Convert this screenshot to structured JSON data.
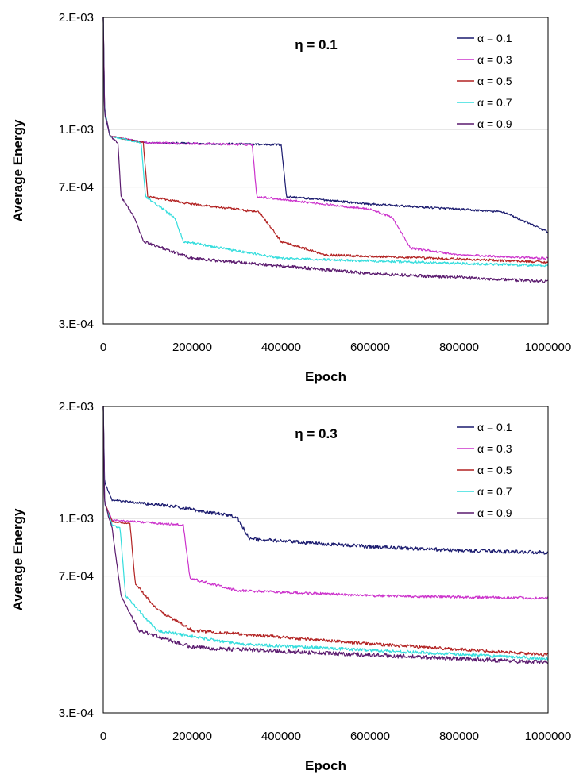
{
  "chart_data": [
    {
      "type": "line",
      "annotation": "η = 0.1",
      "xlabel": "Epoch",
      "ylabel": "Average Energy",
      "xlim": [
        0,
        1000000
      ],
      "ylim": [
        0.0003,
        0.002
      ],
      "x_ticks": [
        0,
        200000,
        400000,
        600000,
        800000,
        1000000
      ],
      "x_tick_labels": [
        "0",
        "200000",
        "400000",
        "600000",
        "800000",
        "1000000"
      ],
      "y_ticks": [
        0.0003,
        0.0007,
        0.001,
        0.002
      ],
      "y_tick_labels": [
        "3.E-04",
        "7.E-04",
        "1.E-03",
        "2.E-03"
      ],
      "y_scale": "log",
      "grid": "horizontal",
      "legend": "top-right",
      "series": [
        {
          "name": "α = 0.1",
          "color": "#1a1a6e",
          "noise": 0.008,
          "points": [
            [
              0,
              0.002
            ],
            [
              3000,
              0.0011
            ],
            [
              15000,
              0.00096
            ],
            [
              100000,
              0.00092
            ],
            [
              400000,
              0.00091
            ],
            [
              412000,
              0.00066
            ],
            [
              600000,
              0.00063
            ],
            [
              800000,
              0.00061
            ],
            [
              900000,
              0.0006
            ],
            [
              1000000,
              0.00053
            ]
          ]
        },
        {
          "name": "α = 0.3",
          "color": "#cc33cc",
          "noise": 0.008,
          "points": [
            [
              0,
              0.002
            ],
            [
              3000,
              0.00112
            ],
            [
              15000,
              0.00096
            ],
            [
              100000,
              0.00092
            ],
            [
              335000,
              0.00091
            ],
            [
              345000,
              0.00066
            ],
            [
              600000,
              0.00061
            ],
            [
              650000,
              0.00058
            ],
            [
              690000,
              0.00048
            ],
            [
              800000,
              0.00046
            ],
            [
              1000000,
              0.00045
            ]
          ]
        },
        {
          "name": "α = 0.5",
          "color": "#b22222",
          "noise": 0.009,
          "points": [
            [
              0,
              0.002
            ],
            [
              3000,
              0.00113
            ],
            [
              15000,
              0.00096
            ],
            [
              90000,
              0.00092
            ],
            [
              100000,
              0.00066
            ],
            [
              200000,
              0.00063
            ],
            [
              350000,
              0.0006
            ],
            [
              400000,
              0.0005
            ],
            [
              500000,
              0.00046
            ],
            [
              1000000,
              0.00044
            ]
          ]
        },
        {
          "name": "α = 0.7",
          "color": "#33dddd",
          "noise": 0.009,
          "points": [
            [
              0,
              0.002
            ],
            [
              3000,
              0.00113
            ],
            [
              15000,
              0.00096
            ],
            [
              85000,
              0.00092
            ],
            [
              95000,
              0.00066
            ],
            [
              160000,
              0.00058
            ],
            [
              180000,
              0.0005
            ],
            [
              400000,
              0.00045
            ],
            [
              1000000,
              0.00043
            ]
          ]
        },
        {
          "name": "α = 0.9",
          "color": "#5a1a6e",
          "noise": 0.012,
          "points": [
            [
              0,
              0.002
            ],
            [
              3000,
              0.00112
            ],
            [
              15000,
              0.00096
            ],
            [
              33000,
              0.00092
            ],
            [
              40000,
              0.00066
            ],
            [
              70000,
              0.00058
            ],
            [
              90000,
              0.0005
            ],
            [
              200000,
              0.00045
            ],
            [
              600000,
              0.00041
            ],
            [
              1000000,
              0.00039
            ]
          ]
        }
      ]
    },
    {
      "type": "line",
      "annotation": "η = 0.3",
      "xlabel": "Epoch",
      "ylabel": "Average Energy",
      "xlim": [
        0,
        1000000
      ],
      "ylim": [
        0.0003,
        0.002
      ],
      "x_ticks": [
        0,
        200000,
        400000,
        600000,
        800000,
        1000000
      ],
      "x_tick_labels": [
        "0",
        "200000",
        "400000",
        "600000",
        "800000",
        "1000000"
      ],
      "y_ticks": [
        0.0003,
        0.0007,
        0.001,
        0.002
      ],
      "y_tick_labels": [
        "3.E-04",
        "7.E-04",
        "1.E-03",
        "2.E-03"
      ],
      "y_scale": "log",
      "grid": "horizontal",
      "legend": "top-right",
      "series": [
        {
          "name": "α = 0.1",
          "color": "#1a1a6e",
          "noise": 0.014,
          "points": [
            [
              0,
              0.002
            ],
            [
              3000,
              0.00125
            ],
            [
              20000,
              0.00112
            ],
            [
              150000,
              0.00108
            ],
            [
              300000,
              0.00101
            ],
            [
              330000,
              0.00088
            ],
            [
              600000,
              0.00084
            ],
            [
              800000,
              0.00082
            ],
            [
              1000000,
              0.00081
            ]
          ]
        },
        {
          "name": "α = 0.3",
          "color": "#cc33cc",
          "noise": 0.01,
          "points": [
            [
              0,
              0.002
            ],
            [
              3000,
              0.0011
            ],
            [
              20000,
              0.00099
            ],
            [
              180000,
              0.00096
            ],
            [
              195000,
              0.00069
            ],
            [
              300000,
              0.00064
            ],
            [
              600000,
              0.00062
            ],
            [
              1000000,
              0.00061
            ]
          ]
        },
        {
          "name": "α = 0.5",
          "color": "#b22222",
          "noise": 0.012,
          "points": [
            [
              0,
              0.002
            ],
            [
              3000,
              0.0011
            ],
            [
              20000,
              0.00098
            ],
            [
              60000,
              0.00097
            ],
            [
              72000,
              0.00067
            ],
            [
              120000,
              0.00057
            ],
            [
              200000,
              0.0005
            ],
            [
              600000,
              0.00046
            ],
            [
              1000000,
              0.00043
            ]
          ]
        },
        {
          "name": "α = 0.7",
          "color": "#33dddd",
          "noise": 0.012,
          "points": [
            [
              0,
              0.002
            ],
            [
              3000,
              0.0011
            ],
            [
              20000,
              0.00096
            ],
            [
              38000,
              0.00094
            ],
            [
              50000,
              0.00062
            ],
            [
              120000,
              0.0005
            ],
            [
              300000,
              0.00046
            ],
            [
              1000000,
              0.00042
            ]
          ]
        },
        {
          "name": "α = 0.9",
          "color": "#5a1a6e",
          "noise": 0.016,
          "points": [
            [
              0,
              0.002
            ],
            [
              3000,
              0.0011
            ],
            [
              20000,
              0.00094
            ],
            [
              40000,
              0.00062
            ],
            [
              80000,
              0.0005
            ],
            [
              200000,
              0.00045
            ],
            [
              1000000,
              0.00041
            ]
          ]
        }
      ]
    }
  ]
}
